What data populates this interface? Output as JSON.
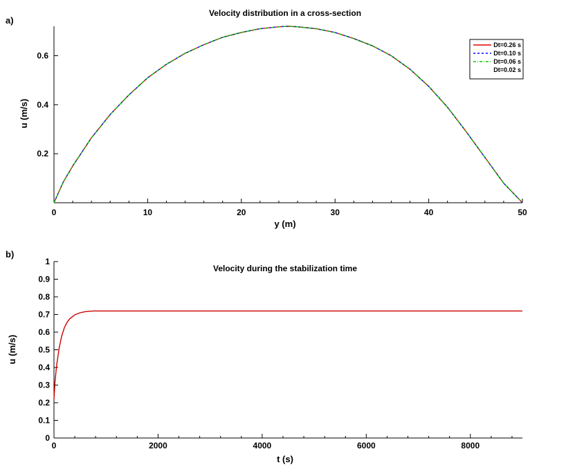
{
  "chart_data": [
    {
      "panel": "a)",
      "type": "line",
      "title": "Velocity distribution in a cross-section",
      "xlabel": "y (m)",
      "ylabel": "u (m/s)",
      "xlim": [
        0,
        50
      ],
      "ylim": [
        0,
        0.72
      ],
      "xticks": [
        0,
        10,
        20,
        30,
        40,
        50
      ],
      "yticks": [
        0.2,
        0.4,
        0.6
      ],
      "ytick_labels": [
        "0.2",
        "0.4",
        "0.6"
      ],
      "grid": false,
      "legend_position": "top-right",
      "x": [
        0,
        1,
        2,
        4,
        6,
        8,
        10,
        12,
        14,
        16,
        18,
        20,
        22,
        24,
        25,
        26,
        28,
        30,
        32,
        34,
        36,
        38,
        40,
        42,
        44,
        46,
        48,
        49,
        50
      ],
      "series": [
        {
          "name": "Dt=0.26 s",
          "color": "#e00000",
          "dash": "solid",
          "values": [
            0.0,
            0.085,
            0.15,
            0.265,
            0.36,
            0.44,
            0.51,
            0.565,
            0.61,
            0.645,
            0.675,
            0.695,
            0.71,
            0.718,
            0.72,
            0.718,
            0.71,
            0.695,
            0.67,
            0.64,
            0.6,
            0.545,
            0.475,
            0.39,
            0.29,
            0.185,
            0.08,
            0.04,
            0.0
          ]
        },
        {
          "name": "Dt=0.10 s",
          "color": "#0000ff",
          "dash": "3,3",
          "values": [
            0.0,
            0.085,
            0.15,
            0.265,
            0.36,
            0.44,
            0.51,
            0.565,
            0.61,
            0.645,
            0.675,
            0.695,
            0.71,
            0.718,
            0.72,
            0.718,
            0.71,
            0.695,
            0.67,
            0.64,
            0.6,
            0.545,
            0.475,
            0.39,
            0.29,
            0.185,
            0.08,
            0.04,
            0.0
          ]
        },
        {
          "name": "Dt=0.06 s",
          "color": "#00cc00",
          "dash": "4,2,1,2",
          "values": [
            0.0,
            0.085,
            0.15,
            0.265,
            0.36,
            0.44,
            0.51,
            0.565,
            0.61,
            0.645,
            0.675,
            0.695,
            0.71,
            0.718,
            0.72,
            0.718,
            0.71,
            0.695,
            0.67,
            0.64,
            0.6,
            0.545,
            0.475,
            0.39,
            0.29,
            0.185,
            0.08,
            0.04,
            0.0
          ]
        },
        {
          "name": "Dt=0.02 s",
          "color": "#ffffff",
          "dash": "solid",
          "values": [
            0.0,
            0.085,
            0.15,
            0.265,
            0.36,
            0.44,
            0.51,
            0.565,
            0.61,
            0.645,
            0.675,
            0.695,
            0.71,
            0.718,
            0.72,
            0.718,
            0.71,
            0.695,
            0.67,
            0.64,
            0.6,
            0.545,
            0.475,
            0.39,
            0.29,
            0.185,
            0.08,
            0.04,
            0.0
          ]
        }
      ]
    },
    {
      "panel": "b)",
      "type": "line",
      "title": "Velocity during the stabilization time",
      "xlabel": "t (s)",
      "ylabel": "u (m/s)",
      "xlim": [
        0,
        9000
      ],
      "ylim": [
        0,
        1
      ],
      "xticks": [
        0,
        2000,
        4000,
        6000,
        8000
      ],
      "yticks": [
        0,
        0.1,
        0.2,
        0.3,
        0.4,
        0.5,
        0.6,
        0.7,
        0.8,
        0.9,
        1
      ],
      "ytick_labels": [
        "0",
        "0.1",
        "0.2",
        "0.3",
        "0.4",
        "0.5",
        "0.6",
        "0.7",
        "0.8",
        "0.9",
        "1"
      ],
      "grid": false,
      "x": [
        0,
        20,
        50,
        100,
        150,
        200,
        250,
        300,
        400,
        500,
        600,
        750,
        1000,
        2000,
        4000,
        6000,
        8000,
        9000
      ],
      "series": [
        {
          "color": "#cc0000",
          "dash": "solid",
          "values": [
            0.22,
            0.32,
            0.41,
            0.51,
            0.58,
            0.625,
            0.655,
            0.675,
            0.698,
            0.71,
            0.716,
            0.72,
            0.72,
            0.72,
            0.72,
            0.72,
            0.72,
            0.72
          ]
        }
      ]
    }
  ]
}
